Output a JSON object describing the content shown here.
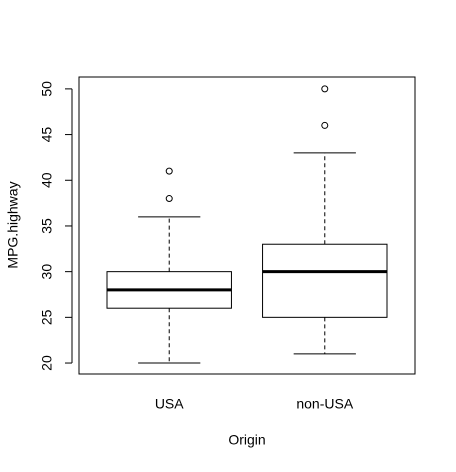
{
  "chart_data": {
    "type": "box",
    "x_label": "Origin",
    "y_label": "MPG.highway",
    "categories": [
      "USA",
      "non-USA"
    ],
    "boxes": [
      {
        "whisker_low": 20,
        "q1": 26,
        "median": 28,
        "q3": 30,
        "whisker_high": 36,
        "outliers": [
          38,
          41
        ]
      },
      {
        "whisker_low": 21,
        "q1": 25,
        "median": 30,
        "q3": 33,
        "whisker_high": 43,
        "outliers": [
          46,
          50
        ]
      }
    ],
    "color": "#000000",
    "ylim": [
      18.8,
      51.3
    ],
    "yticks": [
      20,
      25,
      30,
      35,
      40,
      45,
      50
    ]
  }
}
